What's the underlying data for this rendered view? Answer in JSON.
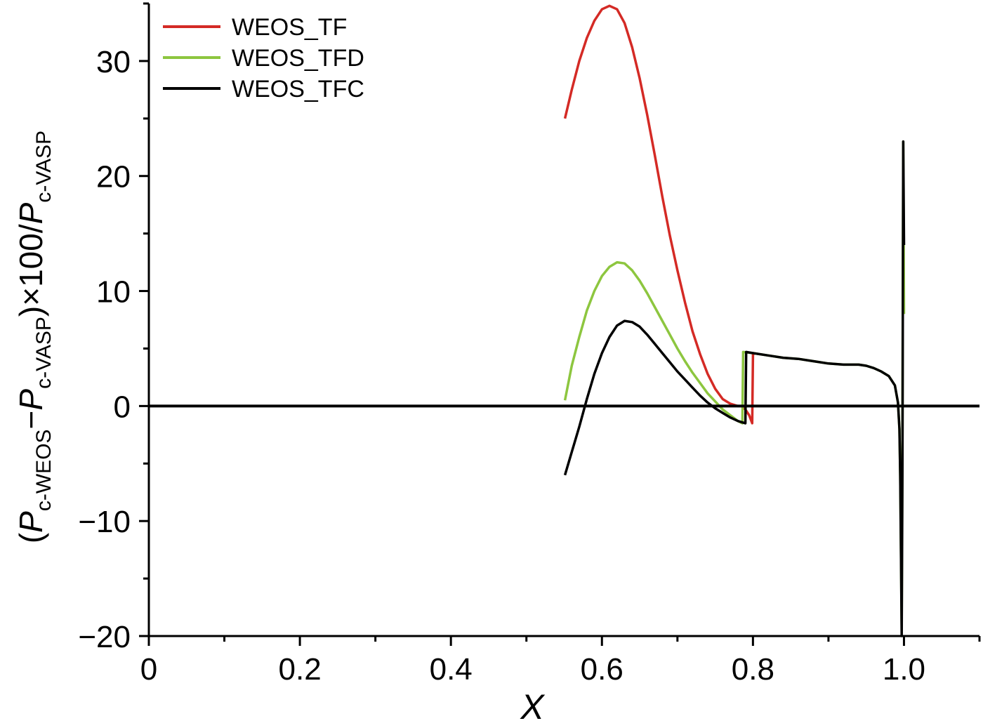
{
  "chart_data": {
    "type": "line",
    "xlabel": "X",
    "ylabel": {
      "open": "(",
      "p1": "P",
      "sub1": "c-WEOS",
      "minus": "−",
      "p2": "P",
      "sub2": "c-VASP",
      "mid": ")×100/",
      "p3": "P",
      "sub3": "c-VASP"
    },
    "xlim": [
      0,
      1.1
    ],
    "ylim": [
      -20,
      35
    ],
    "x_ticks": [
      {
        "value": 0,
        "label": "0"
      },
      {
        "value": 0.2,
        "label": "0.2"
      },
      {
        "value": 0.4,
        "label": "0.4"
      },
      {
        "value": 0.6,
        "label": "0.6"
      },
      {
        "value": 0.8,
        "label": "0.8"
      },
      {
        "value": 1.0,
        "label": "1.0"
      }
    ],
    "y_ticks": [
      {
        "value": -20,
        "label": "−20"
      },
      {
        "value": -10,
        "label": "−10"
      },
      {
        "value": 0,
        "label": "0"
      },
      {
        "value": 10,
        "label": "10"
      },
      {
        "value": 20,
        "label": "20"
      },
      {
        "value": 30,
        "label": "30"
      }
    ],
    "zero_line": true,
    "grid": false,
    "legend_position": "top-left",
    "series": [
      {
        "name": "WEOS_TF",
        "color": "#d42a25",
        "x": [
          0.551,
          0.56,
          0.57,
          0.58,
          0.59,
          0.6,
          0.61,
          0.62,
          0.63,
          0.64,
          0.65,
          0.66,
          0.67,
          0.68,
          0.69,
          0.7,
          0.71,
          0.72,
          0.73,
          0.74,
          0.75,
          0.76,
          0.77,
          0.78,
          0.785,
          0.79,
          0.795,
          0.799,
          0.8,
          0.801
        ],
        "y": [
          25.0,
          27.5,
          30.0,
          32.0,
          33.5,
          34.5,
          34.8,
          34.5,
          33.3,
          31.2,
          28.5,
          25.3,
          21.8,
          18.2,
          14.8,
          11.8,
          9.0,
          6.5,
          4.5,
          2.8,
          1.5,
          0.6,
          0.2,
          0.0,
          0.0,
          -0.3,
          -0.8,
          -1.5,
          4.5,
          4.4
        ]
      },
      {
        "name": "WEOS_TFD",
        "color": "#8dc63f",
        "x": [
          0.551,
          0.56,
          0.57,
          0.58,
          0.59,
          0.6,
          0.61,
          0.62,
          0.63,
          0.64,
          0.65,
          0.66,
          0.67,
          0.68,
          0.69,
          0.7,
          0.71,
          0.72,
          0.73,
          0.74,
          0.75,
          0.76,
          0.77,
          0.78,
          0.786,
          0.787,
          0.8,
          0.82,
          0.84,
          0.86,
          0.88,
          0.9,
          0.92,
          0.94,
          0.95,
          0.96,
          0.97,
          0.98,
          0.988,
          0.992,
          0.994,
          0.995,
          0.996,
          0.997,
          0.998,
          0.999,
          1.0
        ],
        "y": [
          0.5,
          3.5,
          6.0,
          8.3,
          10.0,
          11.3,
          12.1,
          12.5,
          12.4,
          11.8,
          10.9,
          9.8,
          8.6,
          7.4,
          6.2,
          5.0,
          3.9,
          2.9,
          2.0,
          1.1,
          0.4,
          -0.3,
          -0.8,
          -1.3,
          -1.5,
          4.7,
          4.6,
          4.4,
          4.2,
          4.1,
          3.9,
          3.7,
          3.6,
          3.6,
          3.5,
          3.3,
          3.0,
          2.6,
          1.8,
          0.3,
          -2.0,
          -6.0,
          -13.0,
          -19.0,
          -2.0,
          23.0,
          8.0
        ]
      },
      {
        "name": "WEOS_TFC",
        "color": "#000000",
        "x": [
          0.551,
          0.56,
          0.57,
          0.58,
          0.59,
          0.6,
          0.61,
          0.62,
          0.63,
          0.64,
          0.65,
          0.66,
          0.67,
          0.68,
          0.69,
          0.7,
          0.71,
          0.72,
          0.73,
          0.74,
          0.75,
          0.76,
          0.77,
          0.78,
          0.79,
          0.791,
          0.8,
          0.82,
          0.84,
          0.86,
          0.88,
          0.9,
          0.92,
          0.94,
          0.95,
          0.96,
          0.97,
          0.98,
          0.988,
          0.992,
          0.994,
          0.995,
          0.996,
          0.997,
          0.998,
          0.999,
          1.0
        ],
        "y": [
          -6.0,
          -4.0,
          -1.8,
          0.6,
          2.8,
          4.6,
          6.0,
          7.0,
          7.4,
          7.3,
          6.9,
          6.2,
          5.4,
          4.6,
          3.8,
          3.0,
          2.3,
          1.6,
          0.9,
          0.3,
          -0.2,
          -0.6,
          -1.0,
          -1.3,
          -1.5,
          4.7,
          4.6,
          4.4,
          4.2,
          4.1,
          3.9,
          3.7,
          3.6,
          3.6,
          3.5,
          3.3,
          3.0,
          2.6,
          1.8,
          0.3,
          -2.0,
          -6.0,
          -13.0,
          -20.0,
          -5.0,
          23.0,
          14.0
        ]
      }
    ]
  }
}
